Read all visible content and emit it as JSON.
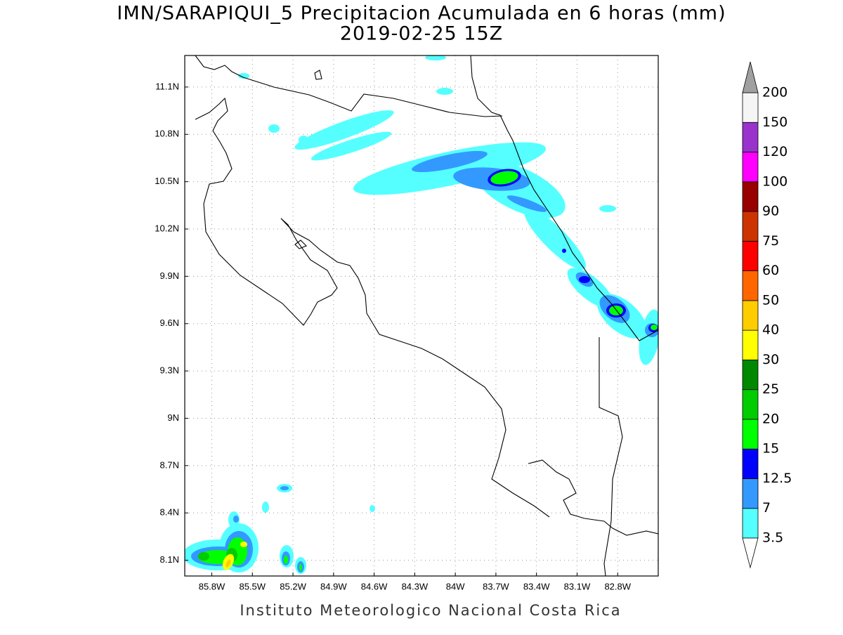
{
  "title": "IMN/SARAPIQUI_5 Precipitacion Acumulada en 6 horas (mm)",
  "subtitle": "2019-02-25 15Z",
  "map": {
    "xlim": [
      -86,
      -82.5
    ],
    "ylim": [
      8,
      11.3
    ],
    "xticks": [
      {
        "value": -85.8,
        "label": "85.8W"
      },
      {
        "value": -85.5,
        "label": "85.5W"
      },
      {
        "value": -85.2,
        "label": "85.2W"
      },
      {
        "value": -84.9,
        "label": "84.9W"
      },
      {
        "value": -84.6,
        "label": "84.6W"
      },
      {
        "value": -84.3,
        "label": "84.3W"
      },
      {
        "value": -84,
        "label": "84W"
      },
      {
        "value": -83.7,
        "label": "83.7W"
      },
      {
        "value": -83.4,
        "label": "83.4W"
      },
      {
        "value": -83.1,
        "label": "83.1W"
      },
      {
        "value": -82.8,
        "label": "82.8W"
      }
    ],
    "yticks": [
      {
        "value": 8.1,
        "label": "8.1N"
      },
      {
        "value": 8.4,
        "label": "8.4N"
      },
      {
        "value": 8.7,
        "label": "8.7N"
      },
      {
        "value": 9,
        "label": "9N"
      },
      {
        "value": 9.3,
        "label": "9.3N"
      },
      {
        "value": 9.6,
        "label": "9.6N"
      },
      {
        "value": 9.9,
        "label": "9.9N"
      },
      {
        "value": 10.2,
        "label": "10.2N"
      },
      {
        "value": 10.5,
        "label": "10.5N"
      },
      {
        "value": 10.8,
        "label": "10.8N"
      },
      {
        "value": 11.1,
        "label": "11.1N"
      }
    ]
  },
  "colorbar": {
    "levels": [
      3.5,
      7,
      12.5,
      15,
      20,
      25,
      30,
      40,
      50,
      60,
      75,
      90,
      100,
      120,
      150,
      200
    ],
    "colors": [
      "#55ffff",
      "#3399ff",
      "#0000ff",
      "#00ff00",
      "#00cc00",
      "#008800",
      "#ffff00",
      "#ffcc00",
      "#ff6600",
      "#ff0000",
      "#cc3300",
      "#990000",
      "#ff00ff",
      "#9933cc",
      "#f5f5f5"
    ],
    "under_color": "#ffffff",
    "over_color": "#a0a0a0"
  },
  "footer": "Instituto Meteorologico Nacional Costa Rica"
}
